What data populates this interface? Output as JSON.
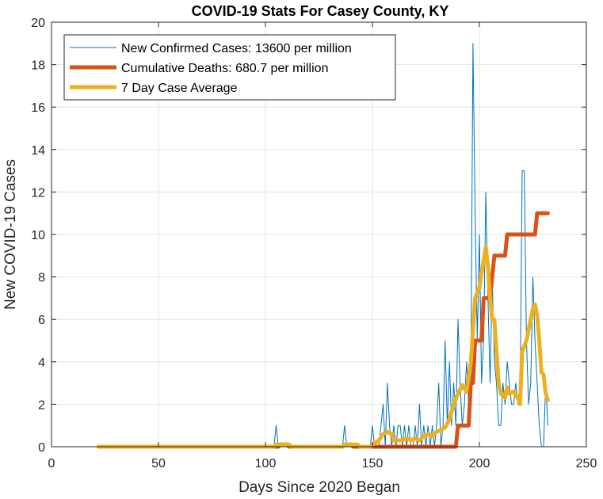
{
  "chart_data": {
    "type": "line",
    "title": "COVID-19 Stats For Casey County, KY",
    "xlabel": "Days Since 2020 Began",
    "ylabel": "New COVID-19 Cases",
    "xlim": [
      0,
      250
    ],
    "ylim": [
      0,
      20
    ],
    "xticks": [
      0,
      50,
      100,
      150,
      200,
      250
    ],
    "yticks": [
      0,
      2,
      4,
      6,
      8,
      10,
      12,
      14,
      16,
      18,
      20
    ],
    "grid": true,
    "legend_position": "top-left",
    "series": [
      {
        "name": "New Confirmed Cases: 13600 per million",
        "color": "#0072BD",
        "line_width": "thin",
        "points": [
          [
            22,
            0
          ],
          [
            104,
            0
          ],
          [
            105,
            1
          ],
          [
            106,
            0
          ],
          [
            136,
            0
          ],
          [
            137,
            1
          ],
          [
            138,
            0
          ],
          [
            149,
            0
          ],
          [
            150,
            1
          ],
          [
            151,
            0
          ],
          [
            153,
            0
          ],
          [
            154,
            1
          ],
          [
            155,
            2
          ],
          [
            156,
            0
          ],
          [
            157,
            3
          ],
          [
            158,
            1
          ],
          [
            159,
            0
          ],
          [
            160,
            1
          ],
          [
            161,
            0
          ],
          [
            162,
            1
          ],
          [
            163,
            1
          ],
          [
            164,
            0
          ],
          [
            165,
            1
          ],
          [
            166,
            0
          ],
          [
            167,
            1
          ],
          [
            168,
            0
          ],
          [
            169,
            0
          ],
          [
            170,
            1
          ],
          [
            171,
            0
          ],
          [
            172,
            2
          ],
          [
            173,
            0
          ],
          [
            174,
            1
          ],
          [
            175,
            0
          ],
          [
            176,
            1
          ],
          [
            177,
            0
          ],
          [
            178,
            1
          ],
          [
            179,
            0
          ],
          [
            180,
            1
          ],
          [
            181,
            3
          ],
          [
            182,
            0
          ],
          [
            183,
            1
          ],
          [
            184,
            5
          ],
          [
            185,
            1
          ],
          [
            186,
            4
          ],
          [
            187,
            1
          ],
          [
            188,
            3
          ],
          [
            189,
            1
          ],
          [
            190,
            6
          ],
          [
            191,
            3
          ],
          [
            192,
            1
          ],
          [
            193,
            2
          ],
          [
            194,
            4
          ],
          [
            195,
            2
          ],
          [
            196,
            3
          ],
          [
            197,
            19
          ],
          [
            198,
            11
          ],
          [
            199,
            5
          ],
          [
            200,
            10
          ],
          [
            201,
            3
          ],
          [
            202,
            5
          ],
          [
            203,
            12
          ],
          [
            204,
            7
          ],
          [
            205,
            3
          ],
          [
            206,
            8
          ],
          [
            207,
            4
          ],
          [
            208,
            3
          ],
          [
            209,
            1
          ],
          [
            210,
            1
          ],
          [
            211,
            3
          ],
          [
            212,
            2
          ],
          [
            213,
            4
          ],
          [
            214,
            3
          ],
          [
            215,
            2
          ],
          [
            216,
            2
          ],
          [
            217,
            3
          ],
          [
            218,
            2
          ],
          [
            219,
            2
          ],
          [
            220,
            13
          ],
          [
            221,
            13
          ],
          [
            222,
            5
          ],
          [
            223,
            2
          ],
          [
            224,
            3
          ],
          [
            225,
            8
          ],
          [
            226,
            5
          ],
          [
            227,
            3
          ],
          [
            228,
            1
          ],
          [
            229,
            0
          ],
          [
            230,
            0
          ],
          [
            231,
            3
          ],
          [
            232,
            1
          ]
        ]
      },
      {
        "name": "Cumulative Deaths: 680.7 per million",
        "color": "#D95319",
        "line_width": "thick",
        "points": [
          [
            22,
            0
          ],
          [
            106,
            0
          ],
          [
            107,
            0.1
          ],
          [
            110,
            0.1
          ],
          [
            111,
            0
          ],
          [
            136,
            0
          ],
          [
            137,
            0.1
          ],
          [
            140,
            0.1
          ],
          [
            141,
            0
          ],
          [
            153,
            0
          ],
          [
            189,
            0
          ],
          [
            190,
            1
          ],
          [
            195,
            1
          ],
          [
            196,
            3
          ],
          [
            197,
            3
          ],
          [
            198,
            5
          ],
          [
            201,
            5
          ],
          [
            202,
            7
          ],
          [
            205,
            7
          ],
          [
            206,
            8
          ],
          [
            207,
            9
          ],
          [
            212,
            9
          ],
          [
            213,
            10
          ],
          [
            226,
            10
          ],
          [
            227,
            11
          ],
          [
            232,
            11
          ]
        ]
      },
      {
        "name": "7 Day Case Average",
        "color": "#EDB120",
        "line_width": "thick",
        "points": [
          [
            22,
            0
          ],
          [
            104,
            0
          ],
          [
            105,
            0.1
          ],
          [
            111,
            0.1
          ],
          [
            112,
            0
          ],
          [
            136,
            0
          ],
          [
            137,
            0.1
          ],
          [
            143,
            0.1
          ],
          [
            144,
            0
          ],
          [
            149,
            0
          ],
          [
            150,
            0.1
          ],
          [
            153,
            0.3
          ],
          [
            155,
            0.6
          ],
          [
            157,
            0.7
          ],
          [
            159,
            0.6
          ],
          [
            160,
            0.3
          ],
          [
            164,
            0.3
          ],
          [
            166,
            0.4
          ],
          [
            168,
            0.3
          ],
          [
            170,
            0.4
          ],
          [
            172,
            0.3
          ],
          [
            174,
            0.5
          ],
          [
            176,
            0.6
          ],
          [
            178,
            0.5
          ],
          [
            180,
            0.7
          ],
          [
            182,
            0.8
          ],
          [
            184,
            0.9
          ],
          [
            186,
            1.3
          ],
          [
            188,
            2
          ],
          [
            190,
            2.5
          ],
          [
            192,
            2.9
          ],
          [
            194,
            2.6
          ],
          [
            196,
            4
          ],
          [
            198,
            7
          ],
          [
            200,
            7.5
          ],
          [
            202,
            8.8
          ],
          [
            203,
            9.4
          ],
          [
            204,
            8.5
          ],
          [
            205,
            7
          ],
          [
            206,
            6
          ],
          [
            207,
            6
          ],
          [
            208,
            4.5
          ],
          [
            209,
            3
          ],
          [
            210,
            2.5
          ],
          [
            212,
            2.3
          ],
          [
            213,
            2.8
          ],
          [
            214,
            2.5
          ],
          [
            216,
            2.6
          ],
          [
            218,
            2.3
          ],
          [
            219,
            2
          ],
          [
            220,
            4.5
          ],
          [
            222,
            5
          ],
          [
            224,
            6
          ],
          [
            225,
            6.5
          ],
          [
            226,
            6.7
          ],
          [
            227,
            6.2
          ],
          [
            228,
            5
          ],
          [
            229,
            3.5
          ],
          [
            230,
            3.4
          ],
          [
            231,
            2.5
          ],
          [
            232,
            2.2
          ]
        ]
      }
    ]
  }
}
